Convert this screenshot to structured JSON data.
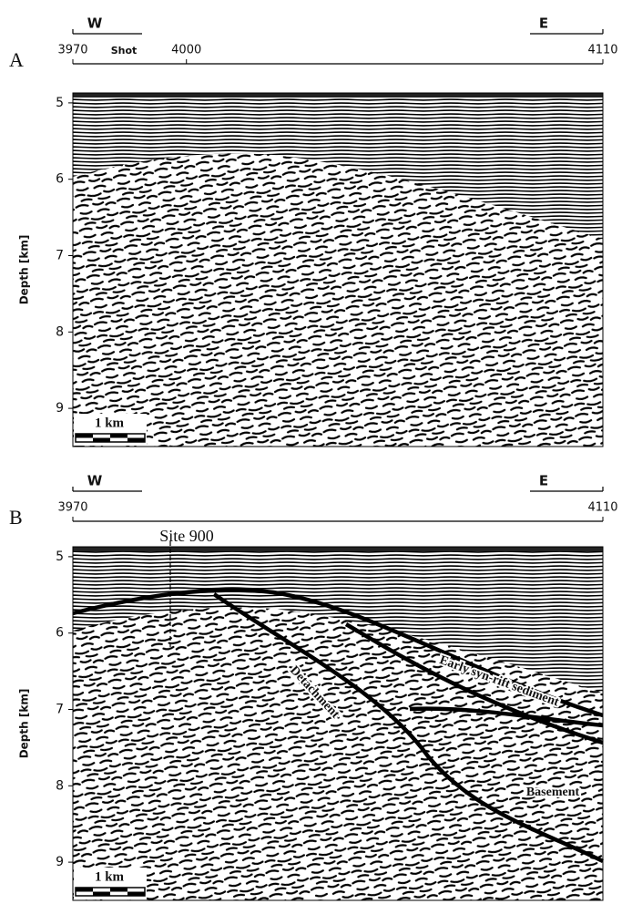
{
  "chart_data": [
    {
      "type": "seismic-section",
      "panel_label": "A",
      "west_label": "W",
      "east_label": "E",
      "xlabel": "Shot",
      "xlim": [
        3970,
        4110
      ],
      "xticks": [
        3970,
        4000,
        4110
      ],
      "ylabel": "Depth [km]",
      "ylim": [
        4.87,
        9.5
      ],
      "yticks": [
        5,
        6,
        7,
        8,
        9
      ],
      "scale_bar": "1 km"
    },
    {
      "type": "seismic-section",
      "panel_label": "B",
      "west_label": "W",
      "east_label": "E",
      "xlim": [
        3970,
        4110
      ],
      "xticks": [
        3970,
        4110
      ],
      "ylabel": "Depth [km]",
      "ylim": [
        4.87,
        9.5
      ],
      "yticks": [
        5,
        6,
        7,
        8,
        9
      ],
      "scale_bar": "1 km",
      "site_label": "Site 900",
      "annotations": [
        "Detachment",
        "Early syn-rift sediment",
        "Basement"
      ]
    }
  ]
}
